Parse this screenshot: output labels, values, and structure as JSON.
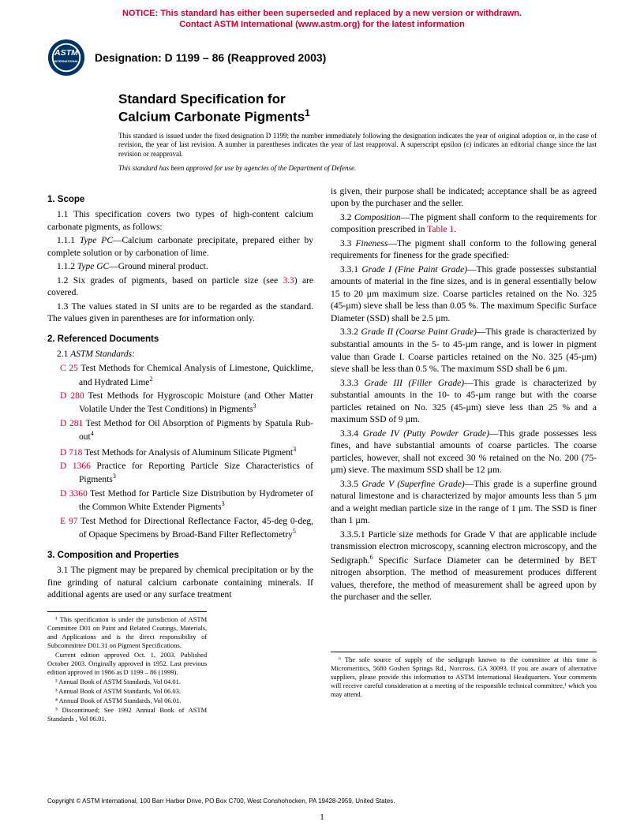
{
  "colors": {
    "notice_red": "#cc0033",
    "link_red": "#cc0033",
    "text": "#000000",
    "bg": "#ffffff"
  },
  "notice": {
    "line1": "NOTICE: This standard has either been superseded and replaced by a new version or withdrawn.",
    "line2": "Contact ASTM International (www.astm.org) for the latest information"
  },
  "logo": {
    "top_text": "ASTM",
    "bottom_text": "INTERNATIONAL"
  },
  "designation": "Designation: D 1199 – 86 (Reapproved 2003)",
  "title": {
    "line1": "Standard Specification for",
    "line2": "Calcium Carbonate Pigments",
    "sup": "1"
  },
  "issuance": "This standard is issued under the fixed designation D 1199; the number immediately following the designation indicates the year of original adoption or, in the case of revision, the year of last revision. A number in parentheses indicates the year of last reapproval. A superscript epsilon (ε) indicates an editorial change since the last revision or reapproval.",
  "dod": "This standard has been approved for use by agencies of the Department of Defense.",
  "sec1": {
    "head": "1. Scope",
    "p1": "1.1 This specification covers two types of high-content calcium carbonate pigments, as follows:",
    "p111_label": "1.1.1 ",
    "p111_ital": "Type PC",
    "p111_rest": "—Calcium carbonate precipitate, prepared either by complete solution or by carbonation of lime.",
    "p112_label": "1.1.2 ",
    "p112_ital": "Type GC",
    "p112_rest": "—Ground mineral product.",
    "p12a": "1.2 Six grades of pigments, based on particle size (see ",
    "p12_xref": "3.3",
    "p12b": ") are covered.",
    "p13": "1.3 The values stated in SI units are to be regarded as the standard. The values given in parentheses are for information only."
  },
  "sec2": {
    "head": "2. Referenced Documents",
    "p21_label": "2.1 ",
    "p21_ital": "ASTM Standards:",
    "refs": [
      {
        "code": "C 25",
        "text": " Test Methods for Chemical Analysis of Limestone, Quicklime, and Hydrated Lime",
        "sup": "2"
      },
      {
        "code": "D 280",
        "text": " Test Methods for Hygroscopic Moisture (and Other Matter Volatile Under the Test Conditions) in Pigments",
        "sup": "3"
      },
      {
        "code": "D 281",
        "text": " Test Method for Oil Absorption of Pigments by Spatula Rub-out",
        "sup": "4"
      },
      {
        "code": "D 718",
        "text": " Test Methods for Analysis of Aluminum Silicate Pigment",
        "sup": "3"
      },
      {
        "code": "D 1366",
        "text": " Practice for Reporting Particle Size Characteristics of Pigments",
        "sup": "3"
      },
      {
        "code": "D 3360",
        "text": " Test Method for Particle Size Distribution by Hydrometer of the Common White Extender Pigments",
        "sup": "3"
      },
      {
        "code": "E 97",
        "text": " Test Method for Directional Reflectance Factor, 45-deg 0-deg, of Opaque Specimens by Broad-Band Filter Reflectometry",
        "sup": "5"
      }
    ]
  },
  "sec3": {
    "head": "3. Composition and Properties",
    "p31": "3.1 The pigment may be prepared by chemical precipitation or by the fine grinding of natural calcium carbonate containing minerals. If additional agents are used or any surface treatment",
    "p31_cont": "is given, their purpose shall be indicated; acceptance shall be as agreed upon by the purchaser and the seller.",
    "p32_label": "3.2 ",
    "p32_ital": "Composition",
    "p32_a": "—The pigment shall conform to the requirements for composition prescribed in ",
    "p32_xref": "Table 1",
    "p32_b": ".",
    "p33_label": "3.3 ",
    "p33_ital": "Fineness",
    "p33_rest": "—The pigment shall conform to the following general requirements for fineness for the grade specified:",
    "p331_label": "3.3.1 ",
    "p331_ital": "Grade I (Fine Paint Grade)",
    "p331_rest": "—This grade possesses substantial amounts of material in the fine sizes, and is in general essentially below 15 to 20 µm maximum size. Coarse particles retained on the No. 325 (45-µm) sieve shall be less than 0.05 %. The maximum Specific Surface Diameter (SSD) shall be 2.5 µm.",
    "p332_label": "3.3.2 ",
    "p332_ital": "Grade II (Coarse Paint Grade)",
    "p332_rest": "—This grade is characterized by substantial amounts in the 5- to 45-µm range, and is lower in pigment value than Grade I. Coarse particles retained on the No. 325 (45-µm) sieve shall be less than 0.5 %. The maximum SSD shall be 6 µm.",
    "p333_label": "3.3.3 ",
    "p333_ital": "Grade III (Filler Grade)",
    "p333_rest": "—This grade is characterized by substantial amounts in the 10- to 45-µm range but with the coarse particles retained on No. 325 (45-µm) sieve less than 25 % and a maximum SSD of 9 µm.",
    "p334_label": "3.3.4 ",
    "p334_ital": "Grade IV (Putty Powder Grade)",
    "p334_rest": "—This grade possesses less fines, and have substantial amounts of coarse particles. The coarse particles, however, shall not exceed 30 % retained on the No. 200 (75-µm) sieve. The maximum SSD shall be 12 µm.",
    "p335_label": "3.3.5 ",
    "p335_ital": "Grade V (Superfine Grade)",
    "p335_rest": "—This grade is a superfine ground natural limestone and is characterized by major amounts less than 5 µm and a weight median particle size in the range of 1 µm. The SSD is finer than 1 µm.",
    "p3351_a": "3.3.5.1 Particle size methods for Grade V that are applicable include transmission electron microscopy, scanning electron microscopy, and the Sedigraph.",
    "p3351_sup": "6",
    "p3351_b": " Specific Surface Diameter can be determined by BET nitrogen absorption. The method of measurement produces different values, therefore, the method of measurement shall be agreed upon by the purchaser and the seller."
  },
  "footnotes_left": [
    "¹ This specification is under the jurisdiction of ASTM Committee D01 on Paint and Related Coatings, Materials, and Applications and is the direct responsibility of Subcommittee D01.31 on Pigment Specifications.",
    "Current edition approved Oct. 1, 2003. Published October 2003. Originally approved in 1952. Last previous edition approved in 1986 as D 1199 – 86 (1999).",
    "² Annual Book of ASTM Standards, Vol 04.01.",
    "³ Annual Book of ASTM Standards, Vol 06.03.",
    "⁴ Annual Book of ASTM Standards, Vol 06.01.",
    "⁵ Discontinued; See 1992 Annual Book of ASTM Standards , Vol 06.01."
  ],
  "footnotes_right": [
    "⁶ The sole source of supply of the sedigraph known to the committee at this time is Micromeritics, 5680 Goshen Springs Rd., Norcross, GA 30093. If you are aware of alternative suppliers, please provide this information to ASTM International Headquarters. Your comments will receive careful consideration at a meeting of the responsible technical committee,¹ which you may attend."
  ],
  "copyright": "Copyright © ASTM International, 100 Barr Harbor Drive, PO Box C700, West Conshohocken, PA 19428-2959, United States.",
  "pagenum": "1"
}
